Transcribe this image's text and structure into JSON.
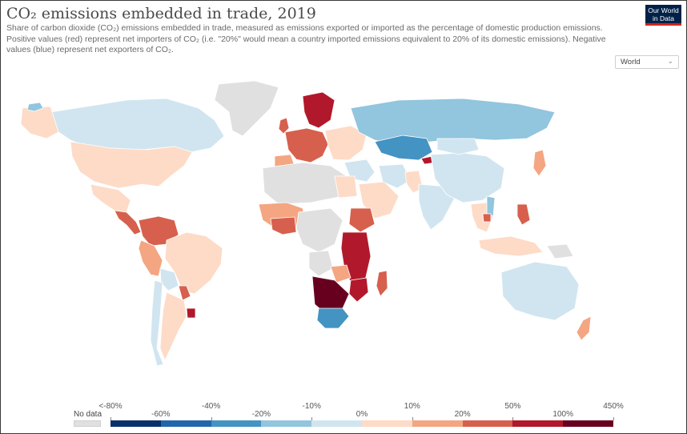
{
  "header": {
    "title": "CO₂ emissions embedded in trade, 2019",
    "subtitle": "Share of carbon dioxide (CO₂) emissions embedded in trade, measured as emissions exported or imported as the percentage of domestic production emissions. Positive values (red) represent net importers of CO₂ (i.e. \"20%\" would mean a country imported emissions equivalent to 20% of its domestic emissions). Negative values (blue) represent net exporters of CO₂.",
    "logo_line1": "Our World",
    "logo_line2": "in Data",
    "logo_color": "#002147",
    "logo_accent": "#ce261e"
  },
  "region_selector": {
    "selected": "World"
  },
  "colors": {
    "no_data": "#e0e0e0",
    "ocean": "#ffffff",
    "country_stroke": "#ffffff"
  },
  "legend": {
    "no_data_label": "No data",
    "bins": [
      {
        "color": "#08306b"
      },
      {
        "color": "#2166ac"
      },
      {
        "color": "#4393c3"
      },
      {
        "color": "#92c5de"
      },
      {
        "color": "#d1e5f0"
      },
      {
        "color": "#fddbc7"
      },
      {
        "color": "#f4a582"
      },
      {
        "color": "#d6604d"
      },
      {
        "color": "#b2182b"
      },
      {
        "color": "#67001f"
      }
    ],
    "ticks_top": [
      "<-80%",
      "-40%",
      "-10%",
      "10%",
      "50%",
      "450%"
    ],
    "ticks_bottom": [
      "-60%",
      "-20%",
      "0%",
      "20%",
      "100%"
    ]
  },
  "map_regions": [
    {
      "name": "greenland",
      "color": "#e0e0e0"
    },
    {
      "name": "canada",
      "color": "#d1e5f0"
    },
    {
      "name": "alaska",
      "color": "#fddbc7"
    },
    {
      "name": "usa",
      "color": "#fddbc7"
    },
    {
      "name": "mexico",
      "color": "#fddbc7"
    },
    {
      "name": "central-america",
      "color": "#d6604d"
    },
    {
      "name": "colombia-venezuela",
      "color": "#d6604d"
    },
    {
      "name": "brazil",
      "color": "#fddbc7"
    },
    {
      "name": "peru",
      "color": "#f4a582"
    },
    {
      "name": "bolivia",
      "color": "#d1e5f0"
    },
    {
      "name": "argentina",
      "color": "#fddbc7"
    },
    {
      "name": "chile",
      "color": "#d1e5f0"
    },
    {
      "name": "paraguay",
      "color": "#d6604d"
    },
    {
      "name": "uruguay",
      "color": "#b2182b"
    },
    {
      "name": "iceland",
      "color": "#92c5de"
    },
    {
      "name": "scandinavia",
      "color": "#b2182b"
    },
    {
      "name": "uk",
      "color": "#d6604d"
    },
    {
      "name": "western-europe",
      "color": "#d6604d"
    },
    {
      "name": "spain",
      "color": "#f4a582"
    },
    {
      "name": "eastern-europe",
      "color": "#fddbc7"
    },
    {
      "name": "russia",
      "color": "#92c5de"
    },
    {
      "name": "kazakhstan",
      "color": "#4393c3"
    },
    {
      "name": "kyrgyzstan",
      "color": "#b2182b"
    },
    {
      "name": "middle-east",
      "color": "#d1e5f0"
    },
    {
      "name": "arabia",
      "color": "#fddbc7"
    },
    {
      "name": "iran",
      "color": "#d1e5f0"
    },
    {
      "name": "pakistan",
      "color": "#fddbc7"
    },
    {
      "name": "india",
      "color": "#d1e5f0"
    },
    {
      "name": "bangladesh",
      "color": "#d6604d"
    },
    {
      "name": "china",
      "color": "#d1e5f0"
    },
    {
      "name": "mongolia",
      "color": "#d1e5f0"
    },
    {
      "name": "japan",
      "color": "#f4a582"
    },
    {
      "name": "southeast-asia",
      "color": "#fddbc7"
    },
    {
      "name": "vietnam",
      "color": "#92c5de"
    },
    {
      "name": "cambodia",
      "color": "#d6604d"
    },
    {
      "name": "philippines",
      "color": "#d6604d"
    },
    {
      "name": "indonesia",
      "color": "#fddbc7"
    },
    {
      "name": "papua",
      "color": "#e0e0e0"
    },
    {
      "name": "australia",
      "color": "#d1e5f0"
    },
    {
      "name": "new-zealand",
      "color": "#f4a582"
    },
    {
      "name": "north-africa",
      "color": "#e0e0e0"
    },
    {
      "name": "egypt",
      "color": "#fddbc7"
    },
    {
      "name": "west-africa",
      "color": "#f4a582"
    },
    {
      "name": "west-africa-coast",
      "color": "#d6604d"
    },
    {
      "name": "central-africa",
      "color": "#e0e0e0"
    },
    {
      "name": "ethiopia",
      "color": "#d6604d"
    },
    {
      "name": "east-africa",
      "color": "#b2182b"
    },
    {
      "name": "angola",
      "color": "#e0e0e0"
    },
    {
      "name": "zambia",
      "color": "#f4a582"
    },
    {
      "name": "mozambique",
      "color": "#b2182b"
    },
    {
      "name": "namibia-botswana",
      "color": "#67001f"
    },
    {
      "name": "south-africa",
      "color": "#4393c3"
    },
    {
      "name": "madagascar",
      "color": "#d6604d"
    }
  ]
}
